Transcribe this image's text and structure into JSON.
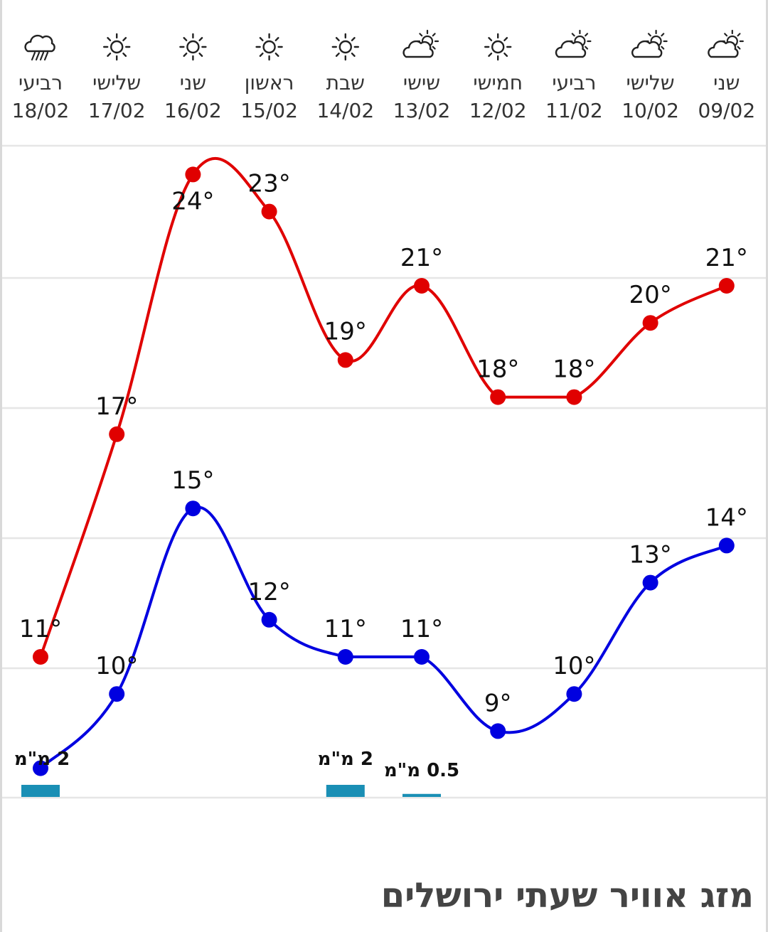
{
  "page_title": "מזג אוויר שעתי ירושלים",
  "colors": {
    "max": "#e00000",
    "min": "#0000e0",
    "rain": "#1a8fb5",
    "grid": "#e6e6e6"
  },
  "chart_data": {
    "type": "line",
    "categories": [
      {
        "day": "רביעי",
        "date": "18/02",
        "icon": "rain-cloud-icon"
      },
      {
        "day": "שלישי",
        "date": "17/02",
        "icon": "sun-icon"
      },
      {
        "day": "שני",
        "date": "16/02",
        "icon": "sun-icon"
      },
      {
        "day": "ראשון",
        "date": "15/02",
        "icon": "sun-icon"
      },
      {
        "day": "שבת",
        "date": "14/02",
        "icon": "sun-icon"
      },
      {
        "day": "שישי",
        "date": "13/02",
        "icon": "partly-cloudy-icon"
      },
      {
        "day": "חמישי",
        "date": "12/02",
        "icon": "sun-icon"
      },
      {
        "day": "רביעי",
        "date": "11/02",
        "icon": "partly-cloudy-icon"
      },
      {
        "day": "שלישי",
        "date": "10/02",
        "icon": "partly-cloudy-icon"
      },
      {
        "day": "שני",
        "date": "09/02",
        "icon": "partly-cloudy-icon"
      }
    ],
    "series": [
      {
        "key": "max",
        "values": [
          11,
          17,
          24,
          23,
          19,
          21,
          18,
          18,
          20,
          21
        ],
        "labels": [
          "11°",
          "17°",
          "24°",
          "23°",
          "19°",
          "21°",
          "18°",
          "18°",
          "20°",
          "21°"
        ]
      },
      {
        "key": "min",
        "values": [
          8,
          10,
          15,
          12,
          11,
          11,
          9,
          10,
          13,
          14
        ],
        "labels": [
          "",
          "10°",
          "15°",
          "12°",
          "11°",
          "11°",
          "9°",
          "10°",
          "13°",
          "14°"
        ]
      }
    ],
    "precipitation": [
      {
        "index": 0,
        "amount": 2,
        "label": "2 מ\"מ"
      },
      {
        "index": 4,
        "amount": 2,
        "label": "2 מ\"מ"
      },
      {
        "index": 5,
        "amount": 0.5,
        "label": "0.5 מ\"מ"
      }
    ],
    "grid": true,
    "legend": "none"
  }
}
